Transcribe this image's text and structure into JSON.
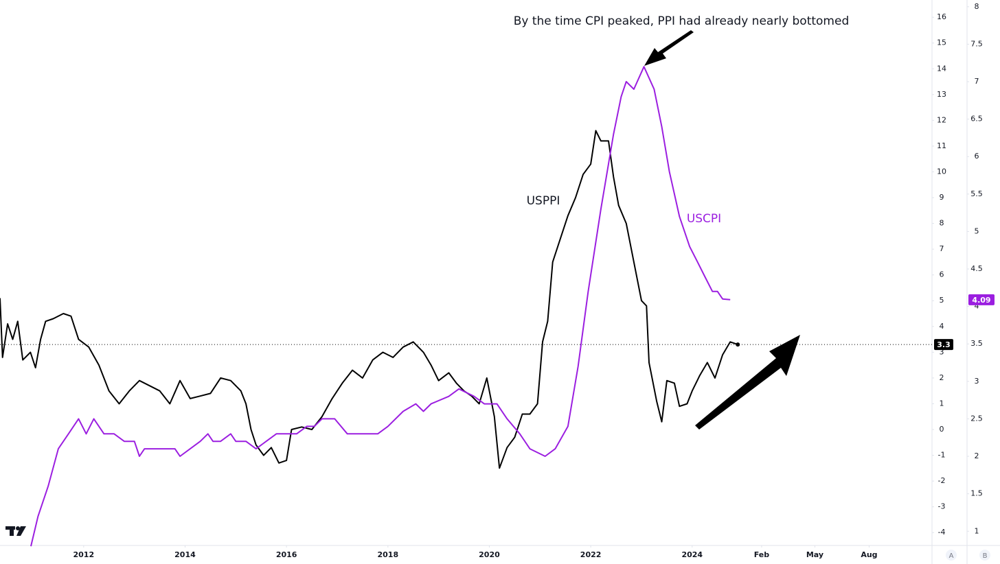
{
  "chart_data": {
    "type": "line",
    "annotations": {
      "title_note": "By the time CPI peaked, PPI had already nearly bottomed",
      "ppi_label": "USPPI",
      "cpi_label": "USCPI"
    },
    "xlim": [
      2010.35,
      2028.73
    ],
    "xticks": [
      2012,
      2014,
      2016,
      2018,
      2020,
      2022,
      2024,
      {
        "value": 2025.37,
        "label": "Feb"
      },
      {
        "value": 2026.42,
        "label": "May"
      },
      {
        "value": 2027.49,
        "label": "Aug"
      }
    ],
    "ylim": [
      -4.5,
      16.67
    ],
    "yticks": [
      -4,
      -3,
      -2,
      -1,
      0,
      1,
      2,
      3,
      4,
      5,
      6,
      7,
      8,
      9,
      10,
      11,
      12,
      13,
      14,
      15,
      16
    ],
    "y2lim": [
      0.81,
      8.09
    ],
    "y2ticks": [
      1,
      1.5,
      2,
      2.5,
      3,
      3.5,
      4,
      4.5,
      5,
      5.5,
      6,
      6.5,
      7,
      7.5,
      8
    ],
    "series": [
      {
        "name": "USPPI",
        "color": "#000000",
        "axis": "y",
        "x": [
          2010.35,
          2010.4,
          2010.5,
          2010.6,
          2010.7,
          2010.8,
          2010.95,
          2011.05,
          2011.15,
          2011.25,
          2011.4,
          2011.6,
          2011.75,
          2011.9,
          2012.1,
          2012.3,
          2012.5,
          2012.7,
          2012.9,
          2013.1,
          2013.3,
          2013.5,
          2013.7,
          2013.9,
          2014.1,
          2014.3,
          2014.5,
          2014.7,
          2014.9,
          2015.1,
          2015.2,
          2015.3,
          2015.4,
          2015.55,
          2015.7,
          2015.85,
          2016.0,
          2016.1,
          2016.3,
          2016.5,
          2016.7,
          2016.9,
          2017.1,
          2017.3,
          2017.5,
          2017.7,
          2017.9,
          2018.1,
          2018.3,
          2018.5,
          2018.7,
          2018.85,
          2019.0,
          2019.2,
          2019.35,
          2019.5,
          2019.65,
          2019.8,
          2019.95,
          2020.1,
          2020.2,
          2020.35,
          2020.5,
          2020.65,
          2020.8,
          2020.95,
          2021.05,
          2021.15,
          2021.25,
          2021.4,
          2021.55,
          2021.7,
          2021.85,
          2022.0,
          2022.1,
          2022.2,
          2022.35,
          2022.45,
          2022.55,
          2022.7,
          2022.85,
          2023.0,
          2023.1,
          2023.15,
          2023.3,
          2023.4,
          2023.5,
          2023.65,
          2023.75,
          2023.9,
          2024.0,
          2024.15,
          2024.3,
          2024.45,
          2024.6,
          2024.75,
          2024.9
        ],
        "values": [
          5.1,
          2.8,
          4.1,
          3.5,
          4.2,
          2.7,
          3.0,
          2.4,
          3.5,
          4.2,
          4.3,
          4.5,
          4.4,
          3.5,
          3.2,
          2.5,
          1.5,
          1.0,
          1.5,
          1.9,
          1.7,
          1.5,
          1.0,
          1.9,
          1.2,
          1.3,
          1.4,
          2.0,
          1.9,
          1.5,
          1.0,
          0.0,
          -0.6,
          -1.0,
          -0.7,
          -1.3,
          -1.2,
          0.0,
          0.1,
          0.0,
          0.5,
          1.2,
          1.8,
          2.3,
          2.0,
          2.7,
          3.0,
          2.8,
          3.2,
          3.4,
          3.0,
          2.5,
          1.9,
          2.2,
          1.8,
          1.5,
          1.3,
          1.0,
          2.0,
          0.5,
          -1.5,
          -0.7,
          -0.3,
          0.6,
          0.6,
          1.0,
          3.4,
          4.2,
          6.5,
          7.4,
          8.3,
          9.0,
          9.9,
          10.3,
          11.6,
          11.2,
          11.2,
          9.8,
          8.7,
          8.0,
          6.5,
          5.0,
          4.8,
          2.6,
          1.1,
          0.3,
          1.9,
          1.8,
          0.9,
          1.0,
          1.5,
          2.1,
          2.6,
          2.0,
          2.9,
          3.4,
          3.3
        ]
      },
      {
        "name": "USCPI",
        "color": "#9b1ee0",
        "axis": "y2",
        "x": [
          2010.96,
          2011.1,
          2011.3,
          2011.5,
          2011.7,
          2011.9,
          2012.05,
          2012.2,
          2012.4,
          2012.6,
          2012.8,
          2013.0,
          2013.1,
          2013.2,
          2013.4,
          2013.6,
          2013.8,
          2013.9,
          2014.1,
          2014.3,
          2014.45,
          2014.55,
          2014.7,
          2014.9,
          2015.0,
          2015.2,
          2015.4,
          2015.6,
          2015.8,
          2016.0,
          2016.2,
          2016.4,
          2016.55,
          2016.7,
          2016.8,
          2016.95,
          2017.2,
          2017.4,
          2017.8,
          2018.0,
          2018.3,
          2018.55,
          2018.7,
          2018.85,
          2019.2,
          2019.4,
          2019.7,
          2019.9,
          2020.15,
          2020.35,
          2020.6,
          2020.8,
          2021.1,
          2021.3,
          2021.55,
          2021.75,
          2021.95,
          2022.2,
          2022.45,
          2022.6,
          2022.7,
          2022.85,
          2023.05,
          2023.25,
          2023.4,
          2023.55,
          2023.75,
          2023.95,
          2024.1,
          2024.25,
          2024.4,
          2024.5,
          2024.6,
          2024.75
        ],
        "values": [
          0.8,
          1.2,
          1.6,
          2.1,
          2.3,
          2.5,
          2.3,
          2.5,
          2.3,
          2.3,
          2.2,
          2.2,
          2.0,
          2.1,
          2.1,
          2.1,
          2.1,
          2.0,
          2.1,
          2.2,
          2.3,
          2.2,
          2.2,
          2.3,
          2.2,
          2.2,
          2.1,
          2.2,
          2.3,
          2.3,
          2.3,
          2.4,
          2.4,
          2.5,
          2.5,
          2.5,
          2.3,
          2.3,
          2.3,
          2.4,
          2.6,
          2.7,
          2.6,
          2.7,
          2.8,
          2.9,
          2.8,
          2.7,
          2.7,
          2.5,
          2.3,
          2.1,
          2.0,
          2.1,
          2.4,
          3.2,
          4.2,
          5.3,
          6.3,
          6.8,
          7.0,
          6.9,
          7.2,
          6.9,
          6.4,
          5.8,
          5.2,
          4.8,
          4.6,
          4.4,
          4.2,
          4.2,
          4.1,
          4.09
        ]
      }
    ]
  },
  "axis_buttons": [
    "A",
    "B"
  ]
}
